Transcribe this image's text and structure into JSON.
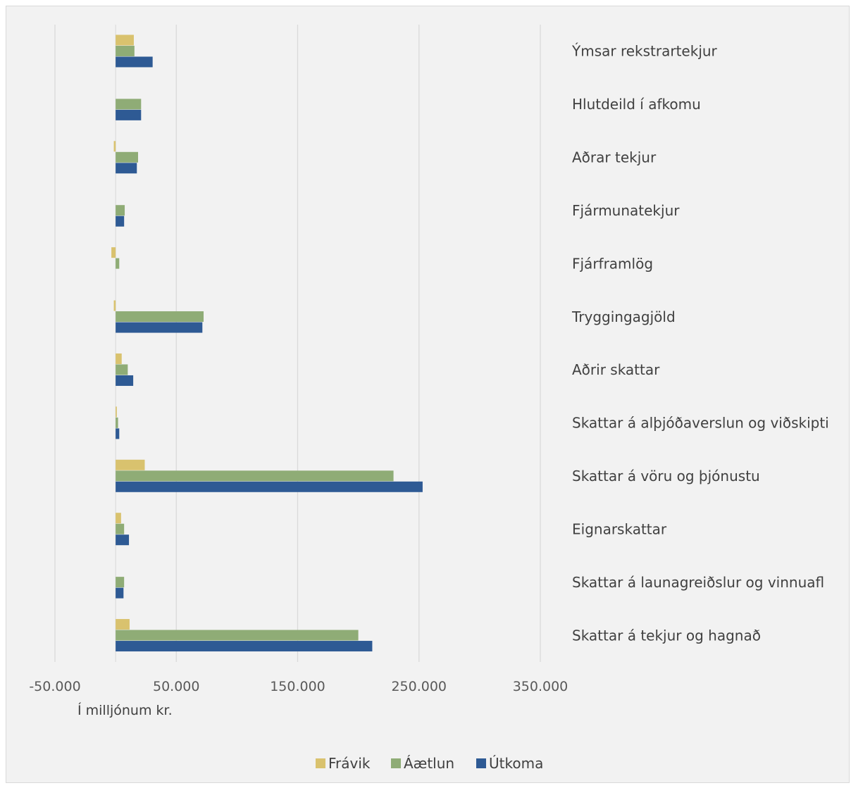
{
  "chart_data": {
    "type": "bar",
    "orientation": "horizontal",
    "title": "",
    "unit_label": "Í milljónum kr.",
    "categories": [
      "Ýmsar rekstrartekjur",
      "Hlutdeild í afkomu",
      "Aðrar tekjur",
      "Fjármunatekjur",
      "Fjárframlög",
      "Tryggingagjöld",
      "Aðrir skattar",
      "Skattar á alþjóðaverslun og viðskipti",
      "Skattar á vöru og þjónustu",
      "Eignarskattar",
      "Skattar á launagreiðslur og vinnuafl",
      "Skattar á tekjur og hagnað"
    ],
    "series": [
      {
        "name": "Frávik",
        "color": "#d9c26e",
        "values": [
          15000,
          0,
          -1500,
          0,
          -3500,
          -1500,
          5000,
          1000,
          24000,
          4500,
          0,
          11500
        ]
      },
      {
        "name": "Áætlun",
        "color": "#8fac76",
        "values": [
          15500,
          21000,
          18500,
          7500,
          3000,
          72500,
          10000,
          2000,
          229000,
          7000,
          7000,
          200000
        ]
      },
      {
        "name": "Útkoma",
        "color": "#2e5a94",
        "values": [
          30500,
          21000,
          17500,
          7000,
          0,
          71500,
          14500,
          3000,
          253000,
          11000,
          6500,
          211500
        ]
      }
    ],
    "x_ticks": [
      "-50.000",
      "50.000",
      "150.000",
      "250.000",
      "350.000"
    ],
    "x_tick_values": [
      -50000,
      50000,
      150000,
      250000,
      350000
    ],
    "xlim": [
      -50000,
      350000
    ],
    "gridlines": "vertical",
    "legend_position": "bottom"
  }
}
